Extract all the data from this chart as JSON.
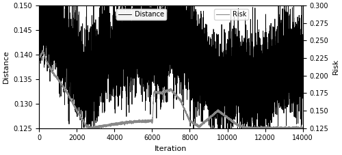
{
  "title": "",
  "xlabel": "Iteration",
  "ylabel_left": "Distance",
  "ylabel_right": "Risk",
  "xlim": [
    0,
    14000
  ],
  "ylim_left": [
    0.125,
    0.15
  ],
  "ylim_right": [
    0.125,
    0.3
  ],
  "yticks_left": [
    0.125,
    0.13,
    0.135,
    0.14,
    0.145,
    0.15
  ],
  "yticks_right": [
    0.125,
    0.15,
    0.175,
    0.2,
    0.225,
    0.25,
    0.275,
    0.3
  ],
  "xticks": [
    0,
    2000,
    4000,
    6000,
    8000,
    10000,
    12000,
    14000
  ],
  "distance_color": "#000000",
  "risk_color": "#888888",
  "distance_lw": 0.6,
  "risk_lw": 0.8,
  "legend_distance": "Distance",
  "legend_risk": "Risk",
  "n_points": 14001,
  "seed": 42,
  "figsize": [
    5.0,
    2.27
  ],
  "dpi": 100
}
